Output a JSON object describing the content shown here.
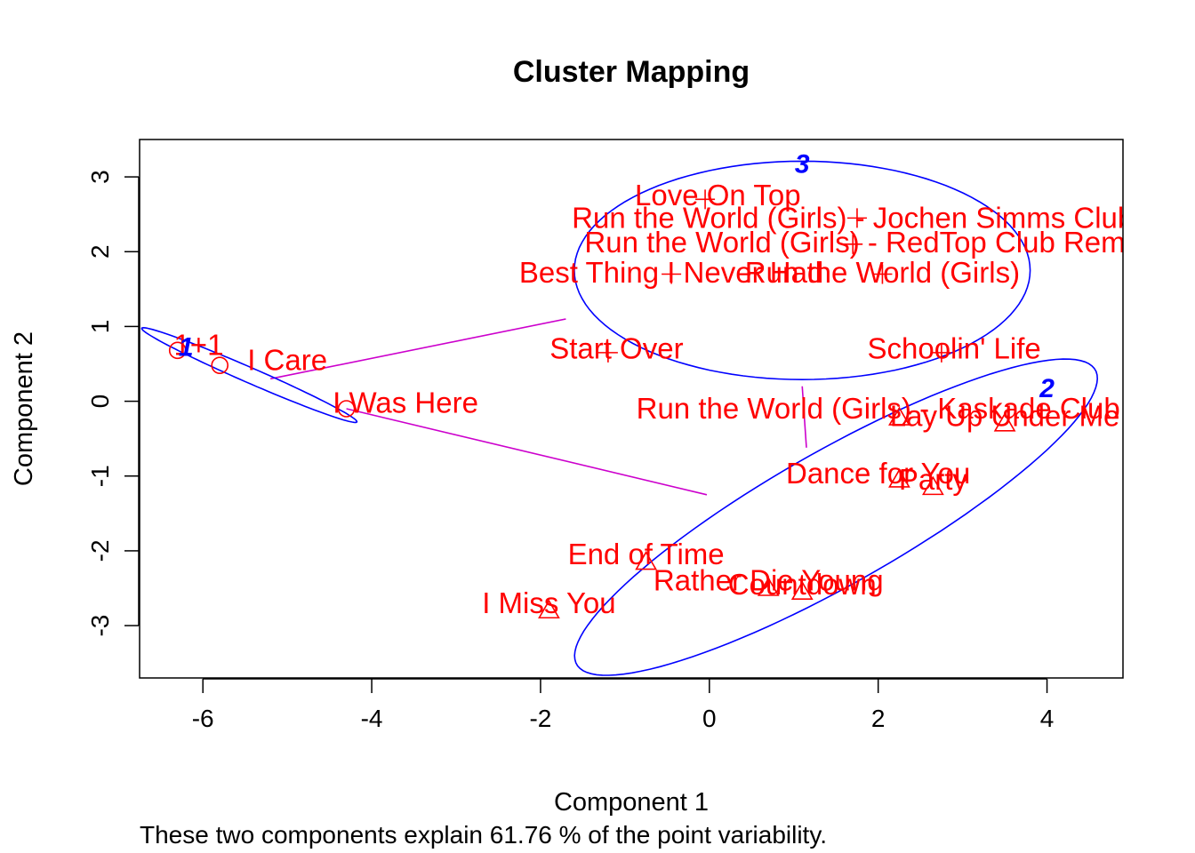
{
  "chart_data": {
    "type": "scatter",
    "title": "Cluster Mapping",
    "xlabel": "Component 1",
    "ylabel": "Component 2",
    "subtitle": "These two components explain 61.76 % of the point variability.",
    "xlim": [
      -6.75,
      4.9
    ],
    "ylim": [
      -3.7,
      3.5
    ],
    "xticks": [
      -6,
      -4,
      -2,
      0,
      2,
      4
    ],
    "yticks": [
      -3,
      -2,
      -1,
      0,
      1,
      2,
      3
    ],
    "grid": false,
    "legend": "none",
    "colors": {
      "points": "#ff0000",
      "ellipse": "#0000ff",
      "links": "#cc00cc",
      "cluster_label": "#0000ff",
      "axes": "#000000"
    },
    "clusters": [
      {
        "id": "1",
        "label": "1",
        "label_x": -6.2,
        "label_y": 0.75,
        "center_x": -5.45,
        "center_y": 0.35,
        "semi_major": 1.42,
        "semi_minor": 0.1,
        "angle_deg": -26.2
      },
      {
        "id": "2",
        "label": "2",
        "label_x": 4.0,
        "label_y": 0.2,
        "center_x": 1.5,
        "center_y": -1.55,
        "semi_major": 3.65,
        "semi_minor": 0.86,
        "angle_deg": 33
      },
      {
        "id": "3",
        "label": "3",
        "label_x": 1.1,
        "label_y": 3.2,
        "center_x": 1.1,
        "center_y": 1.75,
        "semi_major": 2.7,
        "semi_minor": 1.46,
        "angle_deg": 0
      }
    ],
    "links": [
      {
        "from": "1",
        "to": "3",
        "x1": -5.2,
        "y1": 0.3,
        "x2": -1.7,
        "y2": 1.1
      },
      {
        "from": "1",
        "to": "2",
        "x1": -4.3,
        "y1": -0.1,
        "x2": -0.03,
        "y2": -1.25
      },
      {
        "from": "3",
        "to": "2",
        "x1": 1.1,
        "y1": 0.2,
        "x2": 1.15,
        "y2": -0.62
      }
    ],
    "series": [
      {
        "cluster": "1",
        "marker": "circle",
        "points": [
          {
            "x": -6.3,
            "y": 0.68,
            "label": "1+1",
            "lx": -6.05,
            "ly": 0.75
          },
          {
            "x": -5.8,
            "y": 0.48,
            "label": "I Care",
            "lx": -5.0,
            "ly": 0.55
          },
          {
            "x": -4.3,
            "y": -0.1,
            "label": "I Was Here",
            "lx": -3.6,
            "ly": -0.02
          }
        ]
      },
      {
        "cluster": "2",
        "marker": "triangle",
        "points": [
          {
            "x": 2.25,
            "y": -0.22,
            "label": "Run the World (Girls) - Kaskade Club",
            "lx": 2.0,
            "ly": -0.1
          },
          {
            "x": 3.5,
            "y": -0.3,
            "label": "Lay Up Under Me",
            "lx": 3.5,
            "ly": -0.2
          },
          {
            "x": 2.25,
            "y": -1.05,
            "label": "Dance for You",
            "lx": 2.0,
            "ly": -0.97
          },
          {
            "x": 2.65,
            "y": -1.15,
            "label": "Party",
            "lx": 2.65,
            "ly": -1.05
          },
          {
            "x": -0.75,
            "y": -2.15,
            "label": "End of Time",
            "lx": -0.75,
            "ly": -2.05
          },
          {
            "x": 0.7,
            "y": -2.5,
            "label": "Rather Die Young",
            "lx": 0.7,
            "ly": -2.4
          },
          {
            "x": 1.1,
            "y": -2.55,
            "label": "Countdown",
            "lx": 1.1,
            "ly": -2.45
          },
          {
            "x": -1.9,
            "y": -2.8,
            "label": "I Miss You",
            "lx": -1.9,
            "ly": -2.7
          }
        ]
      },
      {
        "cluster": "3",
        "marker": "plus",
        "points": [
          {
            "x": -0.05,
            "y": 2.7,
            "label": "Love On Top",
            "lx": 0.1,
            "ly": 2.75
          },
          {
            "x": 1.75,
            "y": 2.45,
            "label": "Run the World (Girls) - Jochen Simms Club",
            "lx": 1.7,
            "ly": 2.45
          },
          {
            "x": 1.7,
            "y": 2.1,
            "label": "Run the World (Girls) - RedTop Club Remix",
            "lx": 1.85,
            "ly": 2.12
          },
          {
            "x": -0.45,
            "y": 1.7,
            "label": "Best Thing I Never Had",
            "lx": -0.45,
            "ly": 1.72
          },
          {
            "x": 2.05,
            "y": 1.7,
            "label": "Run the World (Girls)",
            "lx": 2.05,
            "ly": 1.72
          },
          {
            "x": -1.2,
            "y": 0.65,
            "label": "Start Over",
            "lx": -1.1,
            "ly": 0.7
          },
          {
            "x": 2.75,
            "y": 0.65,
            "label": "Schoolin' Life",
            "lx": 2.9,
            "ly": 0.7
          }
        ]
      }
    ]
  }
}
